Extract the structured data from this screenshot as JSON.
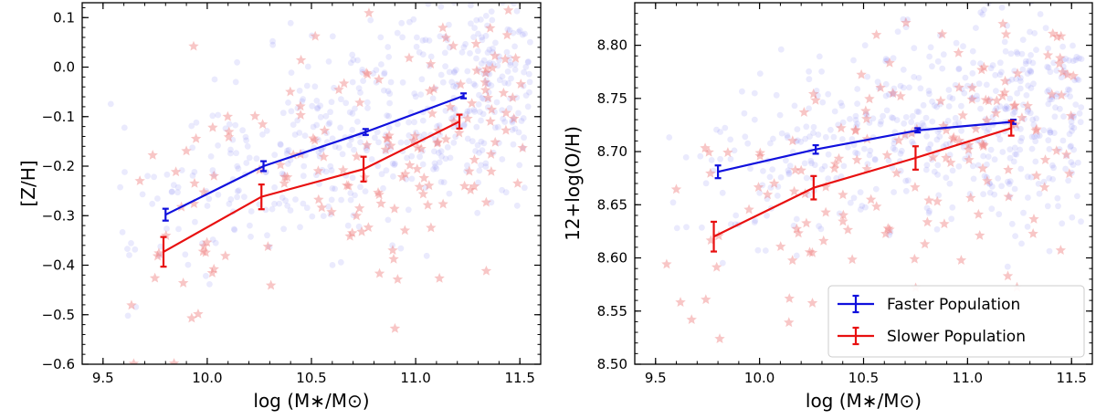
{
  "colors": {
    "faster": "#1010dd",
    "slower": "#e81010",
    "faster_scatter": "#8c8cf5",
    "slower_scatter": "#f08080"
  },
  "chart_data": [
    {
      "type": "scatter",
      "title": "",
      "xlabel": "log (M∗/M⊙)",
      "ylabel": "[Z/H]",
      "xlim": [
        9.4,
        11.6
      ],
      "ylim": [
        -0.6,
        0.13
      ],
      "xticks": [
        9.5,
        10.0,
        10.5,
        11.0,
        11.5
      ],
      "xtick_labels": [
        "9.5",
        "10.0",
        "10.5",
        "11.0",
        "11.5"
      ],
      "yticks": [
        -0.6,
        -0.5,
        -0.4,
        -0.3,
        -0.2,
        -0.1,
        0.0,
        0.1
      ],
      "ytick_labels": [
        "−0.6",
        "−0.5",
        "−0.4",
        "−0.3",
        "−0.2",
        "−0.1",
        "0.0",
        "0.1"
      ],
      "series": [
        {
          "key": "faster",
          "name": "Faster Population",
          "x": [
            9.8,
            10.27,
            10.76,
            11.23
          ],
          "y": [
            -0.298,
            -0.2,
            -0.131,
            -0.058
          ],
          "err": [
            0.012,
            0.01,
            0.006,
            0.005
          ]
        },
        {
          "key": "slower",
          "name": "Slower Population",
          "x": [
            9.79,
            10.26,
            10.75,
            11.21
          ],
          "y": [
            -0.373,
            -0.262,
            -0.206,
            -0.11
          ],
          "err": [
            0.03,
            0.025,
            0.025,
            0.014
          ]
        }
      ],
      "scatter_note": "background samples: faint blue circles (faster) and faint red stars (slower)"
    },
    {
      "type": "scatter",
      "title": "",
      "xlabel": "log (M∗/M⊙)",
      "ylabel": "12+log(O/H)",
      "xlim": [
        9.4,
        11.6
      ],
      "ylim": [
        8.5,
        8.84
      ],
      "xticks": [
        9.5,
        10.0,
        10.5,
        11.0,
        11.5
      ],
      "xtick_labels": [
        "9.5",
        "10.0",
        "10.5",
        "11.0",
        "11.5"
      ],
      "yticks": [
        8.5,
        8.55,
        8.6,
        8.65,
        8.7,
        8.75,
        8.8
      ],
      "ytick_labels": [
        "8.50",
        "8.55",
        "8.60",
        "8.65",
        "8.70",
        "8.75",
        "8.80"
      ],
      "series": [
        {
          "key": "faster",
          "name": "Faster Population",
          "x": [
            9.8,
            10.27,
            10.76,
            11.22
          ],
          "y": [
            8.681,
            8.702,
            8.72,
            8.728
          ],
          "err": [
            0.006,
            0.004,
            0.002,
            0.002
          ]
        },
        {
          "key": "slower",
          "name": "Slower Population",
          "x": [
            9.78,
            10.26,
            10.75,
            11.21
          ],
          "y": [
            8.62,
            8.666,
            8.694,
            8.722
          ],
          "err": [
            0.014,
            0.011,
            0.011,
            0.007
          ]
        }
      ],
      "legend": {
        "placement": "lower-right",
        "entries": [
          "Faster Population",
          "Slower Population"
        ]
      }
    }
  ]
}
